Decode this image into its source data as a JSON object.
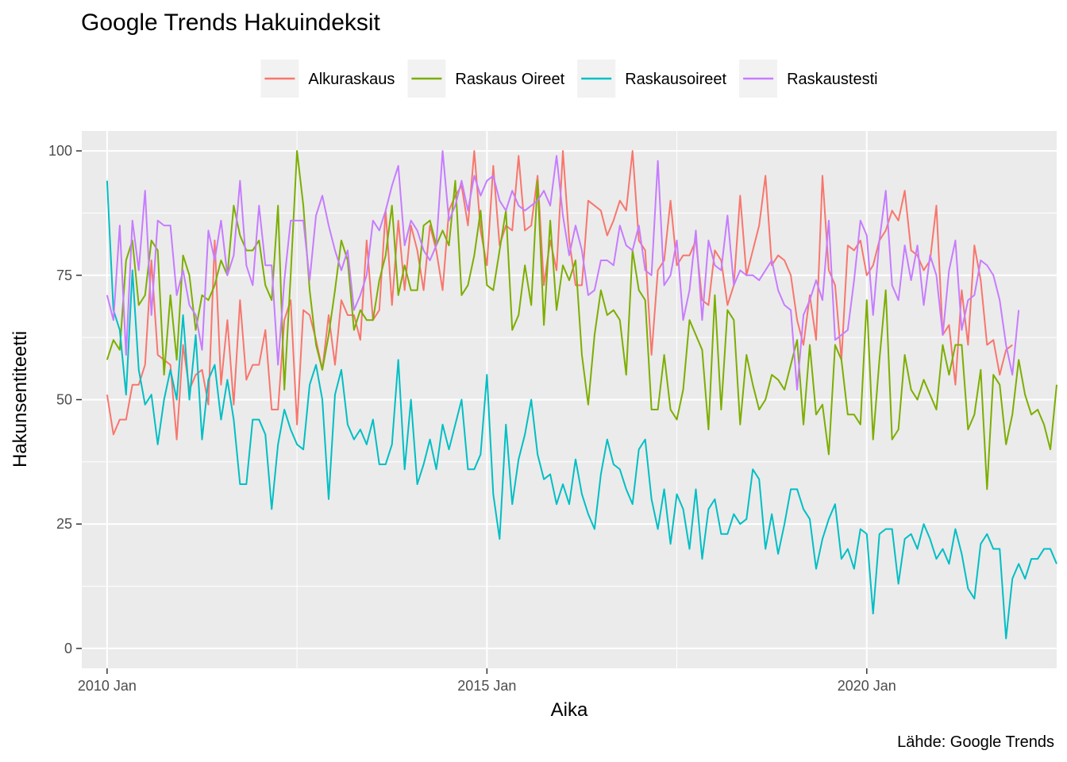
{
  "chart_data": {
    "type": "line",
    "title": "Google Trends Hakuindeksit",
    "xlabel": "Aika",
    "ylabel": "Hakunsentiteetti",
    "caption": "Lähde: Google Trends",
    "x_start": "2010-01",
    "x_step": "month",
    "xlim": [
      "2009-09",
      "2022-07"
    ],
    "ylim": [
      -4,
      104
    ],
    "x_ticks": [
      {
        "value": "2010-01",
        "label": "2010 Jan"
      },
      {
        "value": "2015-01",
        "label": "2015 Jan"
      },
      {
        "value": "2020-01",
        "label": "2020 Jan"
      }
    ],
    "y_ticks": [
      {
        "value": 0,
        "label": "0"
      },
      {
        "value": 25,
        "label": "25"
      },
      {
        "value": 50,
        "label": "50"
      },
      {
        "value": 75,
        "label": "75"
      },
      {
        "value": 100,
        "label": "100"
      }
    ],
    "grid": true,
    "legend_position": "top",
    "series": [
      {
        "name": "Alkuraskaus",
        "color": "#F8766D",
        "values": [
          51,
          43,
          46,
          46,
          53,
          53,
          57,
          78,
          59,
          58,
          57,
          42,
          61,
          52,
          55,
          56,
          49,
          82,
          53,
          66,
          49,
          70,
          54,
          57,
          57,
          64,
          48,
          48,
          66,
          70,
          45,
          68,
          67,
          62,
          56,
          67,
          57,
          70,
          67,
          67,
          62,
          82,
          66,
          68,
          88,
          69,
          86,
          72,
          85,
          80,
          72,
          85,
          80,
          72,
          88,
          91,
          93,
          85,
          100,
          84,
          77,
          97,
          81,
          85,
          84,
          99,
          84,
          85,
          95,
          73,
          82,
          76,
          100,
          82,
          73,
          73,
          90,
          89,
          88,
          83,
          86,
          90,
          88,
          100,
          82,
          80,
          59,
          76,
          78,
          90,
          77,
          79,
          79,
          82,
          70,
          69,
          80,
          78,
          69,
          73,
          91,
          75,
          80,
          85,
          95,
          77,
          79,
          78,
          75,
          66,
          61,
          71,
          62,
          95,
          76,
          73,
          58,
          81,
          80,
          82,
          75,
          77,
          82,
          84,
          88,
          86,
          92,
          80,
          79,
          76,
          78,
          89,
          63,
          65,
          53,
          72,
          61,
          81,
          74,
          61,
          62,
          55,
          60,
          61
        ]
      },
      {
        "name": "Raskaus Oireet",
        "color": "#7CAE00",
        "values": [
          58,
          62,
          60,
          78,
          82,
          69,
          71,
          82,
          80,
          55,
          71,
          58,
          79,
          75,
          64,
          71,
          70,
          73,
          78,
          75,
          89,
          83,
          80,
          80,
          82,
          73,
          70,
          89,
          52,
          75,
          100,
          89,
          72,
          61,
          56,
          63,
          72,
          82,
          78,
          64,
          68,
          66,
          66,
          74,
          79,
          89,
          71,
          77,
          72,
          72,
          85,
          86,
          81,
          84,
          81,
          94,
          71,
          73,
          79,
          88,
          73,
          72,
          80,
          88,
          64,
          67,
          77,
          69,
          94,
          65,
          86,
          68,
          77,
          74,
          78,
          59,
          49,
          63,
          72,
          67,
          68,
          66,
          55,
          80,
          72,
          70,
          48,
          48,
          59,
          48,
          46,
          52,
          66,
          63,
          60,
          44,
          71,
          48,
          68,
          66,
          45,
          59,
          53,
          48,
          50,
          55,
          54,
          52,
          57,
          62,
          45,
          61,
          47,
          49,
          39,
          61,
          58,
          47,
          47,
          45,
          70,
          42,
          58,
          72,
          42,
          44,
          59,
          52,
          50,
          54,
          51,
          48,
          61,
          55,
          61,
          61,
          44,
          47,
          56,
          32,
          55,
          53,
          41,
          47,
          58,
          51,
          47,
          48,
          45,
          40,
          53
        ]
      },
      {
        "name": "Raskausoireet",
        "color": "#00BFC4",
        "values": [
          94,
          68,
          64,
          51,
          76,
          56,
          49,
          51,
          41,
          50,
          56,
          50,
          67,
          50,
          63,
          42,
          54,
          57,
          46,
          54,
          46,
          33,
          33,
          46,
          46,
          43,
          28,
          41,
          48,
          44,
          41,
          40,
          53,
          57,
          50,
          30,
          51,
          56,
          45,
          42,
          44,
          41,
          46,
          37,
          37,
          41,
          58,
          36,
          50,
          33,
          37,
          42,
          36,
          45,
          40,
          45,
          50,
          36,
          36,
          39,
          55,
          31,
          22,
          45,
          29,
          38,
          43,
          50,
          39,
          34,
          35,
          29,
          33,
          29,
          38,
          31,
          27,
          24,
          35,
          42,
          37,
          36,
          32,
          29,
          40,
          42,
          30,
          24,
          32,
          21,
          31,
          28,
          20,
          32,
          18,
          28,
          30,
          23,
          23,
          27,
          25,
          26,
          36,
          34,
          20,
          27,
          19,
          25,
          32,
          32,
          28,
          26,
          16,
          22,
          26,
          29,
          18,
          20,
          16,
          24,
          23,
          7,
          23,
          24,
          24,
          13,
          22,
          23,
          20,
          25,
          22,
          18,
          20,
          17,
          24,
          19,
          12,
          10,
          21,
          23,
          20,
          20,
          2,
          14,
          17,
          14,
          18,
          18,
          20,
          20,
          17
        ]
      },
      {
        "name": "Raskaustesti",
        "color": "#C77CFF",
        "values": [
          71,
          66,
          85,
          59,
          86,
          76,
          92,
          67,
          86,
          85,
          85,
          71,
          76,
          69,
          67,
          60,
          84,
          78,
          86,
          75,
          79,
          94,
          77,
          73,
          89,
          77,
          77,
          57,
          74,
          86,
          86,
          86,
          74,
          87,
          91,
          85,
          80,
          76,
          80,
          68,
          71,
          75,
          86,
          84,
          88,
          93,
          97,
          81,
          86,
          84,
          80,
          78,
          81,
          100,
          86,
          89,
          94,
          88,
          95,
          91,
          94,
          95,
          90,
          88,
          92,
          89,
          88,
          89,
          90,
          92,
          89,
          99,
          87,
          79,
          85,
          80,
          71,
          72,
          78,
          78,
          77,
          85,
          81,
          80,
          85,
          76,
          75,
          98,
          73,
          75,
          82,
          66,
          72,
          84,
          66,
          82,
          77,
          76,
          87,
          73,
          76,
          75,
          75,
          74,
          76,
          78,
          72,
          69,
          68,
          52,
          67,
          70,
          74,
          70,
          86,
          62,
          63,
          64,
          74,
          86,
          83,
          67,
          82,
          92,
          73,
          70,
          81,
          74,
          81,
          69,
          79,
          75,
          63,
          76,
          82,
          64,
          70,
          71,
          78,
          77,
          75,
          70,
          61,
          55,
          68
        ]
      }
    ]
  }
}
